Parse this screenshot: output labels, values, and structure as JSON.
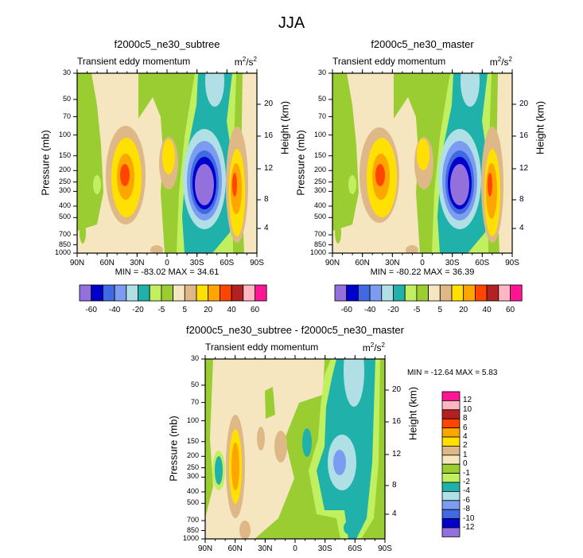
{
  "title": "JJA",
  "colors": [
    "#9370DB",
    "#0000CD",
    "#4169E1",
    "#7B9CF0",
    "#B0E0E6",
    "#20B2AA",
    "#C0F060",
    "#9ACD32",
    "#F5E6C0",
    "#DEB887",
    "#FFE000",
    "#FFA500",
    "#FF4500",
    "#B22222",
    "#FFB6C1",
    "#FF1493"
  ],
  "chart_data": [
    {
      "type": "contour",
      "title": "f2000c5_ne30_subtree",
      "subtitle": "Transient eddy momentum",
      "units": "m2/s2",
      "xlabel": "",
      "ylabel": "Pressure (mb)",
      "y2label": "Height (km)",
      "x_ticks": [
        "90N",
        "60N",
        "30N",
        "0",
        "30S",
        "60S",
        "90S"
      ],
      "y_ticks": [
        "30",
        "50",
        "70",
        "100",
        "150",
        "200",
        "250",
        "300",
        "400",
        "500",
        "700",
        "850",
        "1000"
      ],
      "y2_ticks": [
        "20",
        "16",
        "12",
        "8",
        "4"
      ],
      "ylim": [
        1000,
        30
      ],
      "stats": "MIN = -83.02  MAX = 34.61",
      "levels_labels": [
        "-60",
        "-40",
        "-20",
        "-5",
        "5",
        "20",
        "40",
        "60"
      ]
    },
    {
      "type": "contour",
      "title": "f2000c5_ne30_master",
      "subtitle": "Transient eddy momentum",
      "units": "m2/s2",
      "xlabel": "",
      "ylabel": "Pressure (mb)",
      "y2label": "Height (km)",
      "x_ticks": [
        "90N",
        "60N",
        "30N",
        "0",
        "30S",
        "60S",
        "90S"
      ],
      "y_ticks": [
        "30",
        "50",
        "70",
        "100",
        "150",
        "200",
        "250",
        "300",
        "400",
        "500",
        "700",
        "850",
        "1000"
      ],
      "y2_ticks": [
        "20",
        "16",
        "12",
        "8",
        "4"
      ],
      "ylim": [
        1000,
        30
      ],
      "stats": "MIN = -80.22  MAX = 36.39",
      "levels_labels": [
        "-60",
        "-40",
        "-20",
        "-5",
        "5",
        "20",
        "40",
        "60"
      ]
    },
    {
      "type": "contour",
      "title": "f2000c5_ne30_subtree - f2000c5_ne30_master",
      "subtitle": "Transient eddy momentum",
      "units": "m2/s2",
      "xlabel": "",
      "ylabel": "Pressure (mb)",
      "y2label": "Height (km)",
      "x_ticks": [
        "90N",
        "60N",
        "30N",
        "0",
        "30S",
        "60S",
        "90S"
      ],
      "y_ticks": [
        "30",
        "50",
        "70",
        "100",
        "150",
        "200",
        "250",
        "300",
        "400",
        "500",
        "700",
        "850",
        "1000"
      ],
      "y2_ticks": [
        "20",
        "16",
        "12",
        "8",
        "4"
      ],
      "ylim": [
        1000,
        30
      ],
      "stats": "MIN = -12.64  MAX =   5.83",
      "levels_labels": [
        "12",
        "10",
        "8",
        "6",
        "4",
        "2",
        "1",
        "0",
        "-1",
        "-2",
        "-4",
        "-6",
        "-8",
        "-10",
        "-12"
      ]
    }
  ]
}
